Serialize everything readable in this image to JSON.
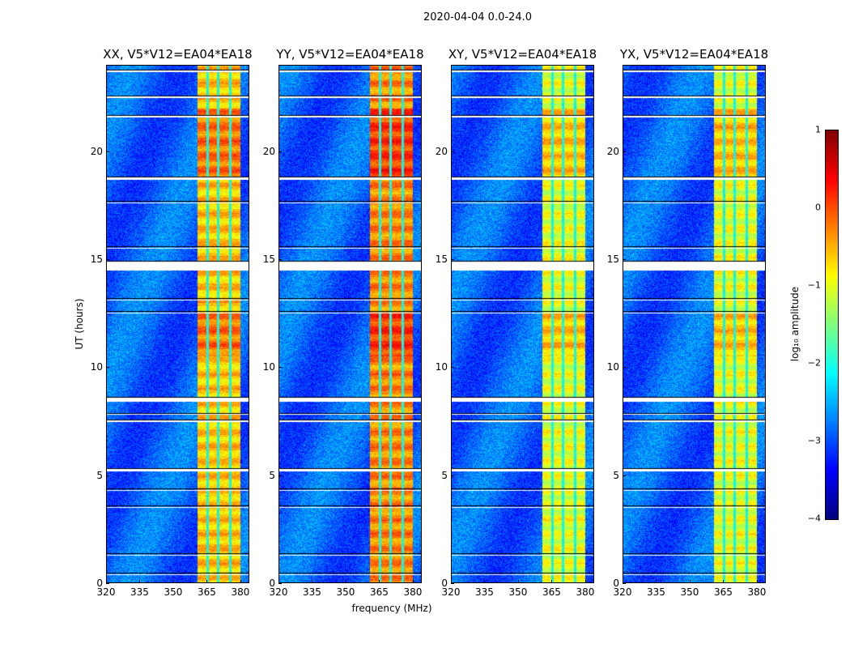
{
  "chart_data": {
    "type": "heatmap",
    "title": "2020-04-04 0.0-24.0",
    "xlabel": "frequency (MHz)",
    "ylabel": "UT (hours)",
    "xlim": [
      320,
      384
    ],
    "ylim": [
      0,
      24
    ],
    "xticks": [
      "320",
      "335",
      "350",
      "365",
      "380"
    ],
    "xtick_values": [
      320,
      335,
      350,
      365,
      380
    ],
    "yticks": [
      "0",
      "5",
      "10",
      "15",
      "20"
    ],
    "ytick_values": [
      0,
      5,
      10,
      15,
      20
    ],
    "panels": [
      {
        "title": "XX, V5*V12=EA04*EA18",
        "band_peak": 0.0
      },
      {
        "title": "YY, V5*V12=EA04*EA18",
        "band_peak": 0.3
      },
      {
        "title": "XY, V5*V12=EA04*EA18",
        "band_peak": -0.4
      },
      {
        "title": "YX, V5*V12=EA04*EA18",
        "band_peak": -0.4
      }
    ],
    "colormap": "jet",
    "background_level": -2.9,
    "rfi_band_mhz": [
      360.5,
      380
    ],
    "rfi_band_gaps_mhz": [
      365.3,
      370,
      375.3
    ],
    "flagged_ut_hours": [
      [
        14.5,
        14.9
      ],
      [
        18.7,
        18.8
      ],
      [
        8.4,
        8.6
      ],
      [
        5.2,
        5.3
      ],
      [
        0.4,
        0.45
      ],
      [
        23.7,
        23.75
      ],
      [
        22.5,
        22.55
      ],
      [
        21.6,
        21.65
      ],
      [
        17.6,
        17.65
      ],
      [
        15.5,
        15.55
      ],
      [
        13.1,
        13.15
      ],
      [
        12.5,
        12.55
      ],
      [
        7.8,
        7.85
      ],
      [
        7.5,
        7.55
      ],
      [
        4.3,
        4.35
      ],
      [
        3.5,
        3.55
      ],
      [
        1.3,
        1.35
      ]
    ],
    "colorbar": {
      "label": "log₁₀ amplitude",
      "range": [
        -4,
        1
      ],
      "ticks": [
        "1",
        "0",
        "−1",
        "−2",
        "−3",
        "−4"
      ],
      "tick_values": [
        1,
        0,
        -1,
        -2,
        -3,
        -4
      ]
    }
  }
}
